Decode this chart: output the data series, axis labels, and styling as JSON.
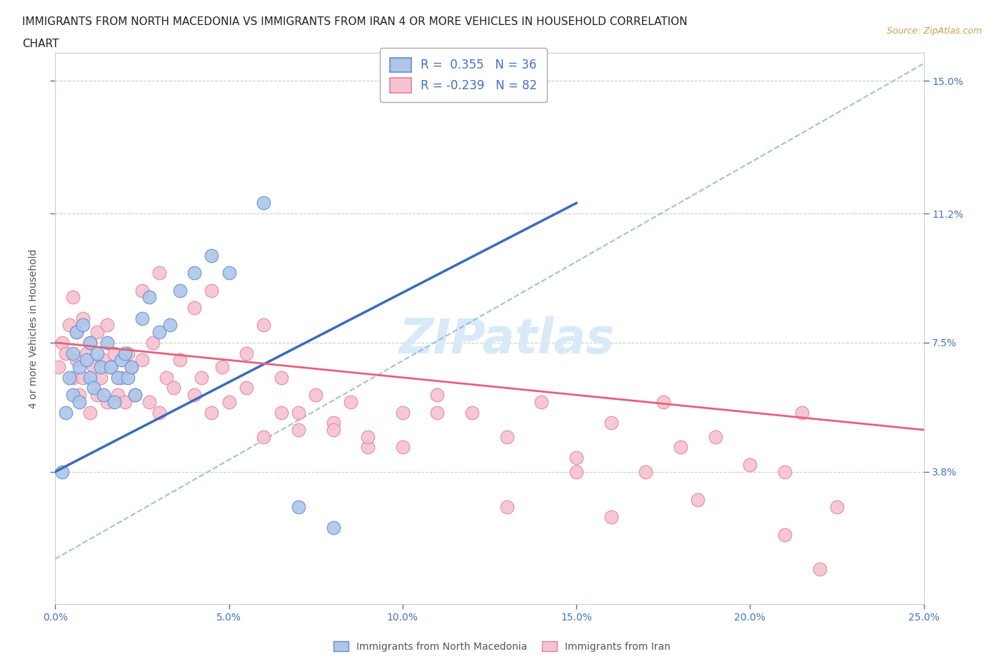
{
  "title_line1": "IMMIGRANTS FROM NORTH MACEDONIA VS IMMIGRANTS FROM IRAN 4 OR MORE VEHICLES IN HOUSEHOLD CORRELATION",
  "title_line2": "CHART",
  "source": "Source: ZipAtlas.com",
  "ylabel": "4 or more Vehicles in Household",
  "xlim": [
    0.0,
    0.25
  ],
  "ylim": [
    0.0,
    0.158
  ],
  "xticks": [
    0.0,
    0.05,
    0.1,
    0.15,
    0.2,
    0.25
  ],
  "xtick_labels": [
    "0.0%",
    "5.0%",
    "10.0%",
    "15.0%",
    "20.0%",
    "25.0%"
  ],
  "ytick_positions": [
    0.038,
    0.075,
    0.112,
    0.15
  ],
  "ytick_labels": [
    "3.8%",
    "7.5%",
    "11.2%",
    "15.0%"
  ],
  "blue_R": "0.355",
  "blue_N": "36",
  "pink_R": "-0.239",
  "pink_N": "82",
  "blue_fill_color": "#aec6e8",
  "pink_fill_color": "#f5c2d0",
  "blue_edge_color": "#5b8dd9",
  "pink_edge_color": "#e8809a",
  "blue_line_color": "#3a6bbf",
  "pink_line_color": "#e8607a",
  "blue_dash_color": "#8ab0e0",
  "grid_color": "#cccccc",
  "watermark_color": "#d8eaf8",
  "figsize": [
    14.06,
    9.3
  ],
  "dpi": 100,
  "blue_scatter_x": [
    0.002,
    0.003,
    0.004,
    0.005,
    0.005,
    0.006,
    0.007,
    0.007,
    0.008,
    0.009,
    0.01,
    0.01,
    0.011,
    0.012,
    0.013,
    0.014,
    0.015,
    0.016,
    0.017,
    0.018,
    0.019,
    0.02,
    0.021,
    0.022,
    0.023,
    0.025,
    0.027,
    0.03,
    0.033,
    0.036,
    0.04,
    0.045,
    0.05,
    0.06,
    0.07,
    0.08
  ],
  "blue_scatter_y": [
    0.038,
    0.055,
    0.065,
    0.072,
    0.06,
    0.078,
    0.068,
    0.058,
    0.08,
    0.07,
    0.065,
    0.075,
    0.062,
    0.072,
    0.068,
    0.06,
    0.075,
    0.068,
    0.058,
    0.065,
    0.07,
    0.072,
    0.065,
    0.068,
    0.06,
    0.082,
    0.088,
    0.078,
    0.08,
    0.09,
    0.095,
    0.1,
    0.095,
    0.115,
    0.028,
    0.022
  ],
  "pink_scatter_x": [
    0.001,
    0.002,
    0.003,
    0.004,
    0.005,
    0.005,
    0.006,
    0.006,
    0.007,
    0.008,
    0.008,
    0.009,
    0.01,
    0.01,
    0.011,
    0.012,
    0.012,
    0.013,
    0.014,
    0.015,
    0.015,
    0.016,
    0.017,
    0.018,
    0.019,
    0.02,
    0.021,
    0.022,
    0.023,
    0.025,
    0.027,
    0.028,
    0.03,
    0.032,
    0.034,
    0.036,
    0.04,
    0.042,
    0.045,
    0.048,
    0.05,
    0.055,
    0.06,
    0.065,
    0.07,
    0.075,
    0.08,
    0.085,
    0.09,
    0.1,
    0.11,
    0.12,
    0.13,
    0.14,
    0.15,
    0.16,
    0.17,
    0.175,
    0.18,
    0.19,
    0.2,
    0.21,
    0.215,
    0.22,
    0.025,
    0.03,
    0.04,
    0.045,
    0.055,
    0.06,
    0.065,
    0.07,
    0.08,
    0.09,
    0.1,
    0.11,
    0.13,
    0.15,
    0.16,
    0.185,
    0.21,
    0.225
  ],
  "pink_scatter_y": [
    0.068,
    0.075,
    0.072,
    0.08,
    0.065,
    0.088,
    0.07,
    0.078,
    0.06,
    0.065,
    0.082,
    0.072,
    0.055,
    0.075,
    0.068,
    0.06,
    0.078,
    0.065,
    0.07,
    0.058,
    0.08,
    0.068,
    0.072,
    0.06,
    0.065,
    0.058,
    0.072,
    0.068,
    0.06,
    0.07,
    0.058,
    0.075,
    0.055,
    0.065,
    0.062,
    0.07,
    0.06,
    0.065,
    0.055,
    0.068,
    0.058,
    0.062,
    0.048,
    0.055,
    0.05,
    0.06,
    0.052,
    0.058,
    0.045,
    0.055,
    0.06,
    0.055,
    0.048,
    0.058,
    0.042,
    0.052,
    0.038,
    0.058,
    0.045,
    0.048,
    0.04,
    0.038,
    0.055,
    0.01,
    0.09,
    0.095,
    0.085,
    0.09,
    0.072,
    0.08,
    0.065,
    0.055,
    0.05,
    0.048,
    0.045,
    0.055,
    0.028,
    0.038,
    0.025,
    0.03,
    0.02,
    0.028
  ],
  "blue_trend_x": [
    0.0,
    0.15
  ],
  "blue_trend_y": [
    0.038,
    0.115
  ],
  "pink_trend_x": [
    0.0,
    0.25
  ],
  "pink_trend_y": [
    0.075,
    0.05
  ],
  "dash_trend_x": [
    0.0,
    0.25
  ],
  "dash_trend_y": [
    0.013,
    0.155
  ]
}
